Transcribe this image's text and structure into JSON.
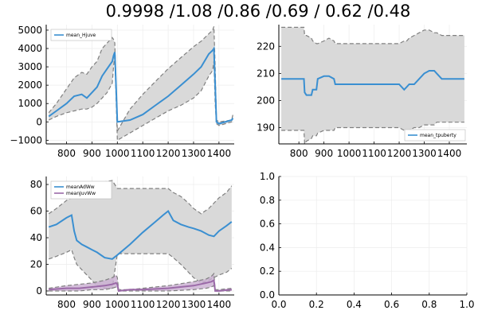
{
  "figure": {
    "title": "0.9998 /1.08 /0.86 /0.69 / 0.62 /0.48"
  },
  "chart_data": [
    {
      "type": "line",
      "panel": "top-left",
      "title": "",
      "xlabel": "",
      "ylabel": "",
      "xlim": [
        720,
        1460
      ],
      "ylim": [
        -1200,
        5300
      ],
      "xticks": [
        800,
        900,
        1000,
        1100,
        1200,
        1300,
        1400
      ],
      "xtick_labels": [
        "800",
        "900",
        "1000",
        "1100",
        "1200",
        "1300",
        "1400"
      ],
      "yticks": [
        -1000,
        0,
        1000,
        2000,
        3000,
        4000,
        5000
      ],
      "ytick_labels": [
        "−1000",
        "0",
        "1000",
        "2000",
        "3000",
        "4000",
        "5000"
      ],
      "grid": true,
      "legend": {
        "position": "top-left",
        "entries": [
          "mean_Hjuve"
        ]
      },
      "series": [
        {
          "name": "mean_Hjuve",
          "color": "#3a8fd1",
          "x": [
            730,
            760,
            800,
            830,
            860,
            880,
            900,
            920,
            940,
            960,
            980,
            985,
            990,
            1000,
            1050,
            1100,
            1150,
            1200,
            1250,
            1300,
            1330,
            1360,
            1375,
            1380,
            1385,
            1390,
            1400,
            1450,
            1455
          ],
          "y": [
            300,
            600,
            1000,
            1400,
            1500,
            1300,
            1600,
            1900,
            2500,
            2900,
            3300,
            3600,
            3800,
            0,
            100,
            400,
            900,
            1400,
            2000,
            2600,
            3000,
            3700,
            3900,
            4000,
            2000,
            0,
            -100,
            100,
            200
          ],
          "band_upper": [
            500,
            1000,
            1800,
            2400,
            2700,
            2600,
            3000,
            3300,
            4000,
            4300,
            4600,
            4500,
            4300,
            -500,
            700,
            1500,
            2200,
            2900,
            3500,
            4100,
            4400,
            4800,
            5000,
            5200,
            3000,
            100,
            0,
            100,
            400
          ],
          "band_lower": [
            100,
            300,
            500,
            600,
            700,
            700,
            800,
            1000,
            1300,
            1600,
            2100,
            3000,
            3600,
            -1000,
            -600,
            -200,
            200,
            600,
            900,
            1300,
            1700,
            2500,
            2800,
            3300,
            1000,
            -100,
            -200,
            0,
            100
          ]
        }
      ]
    },
    {
      "type": "line",
      "panel": "top-right",
      "title": "",
      "xlabel": "",
      "ylabel": "",
      "xlim": [
        720,
        1470
      ],
      "ylim": [
        184,
        228
      ],
      "xticks": [
        800,
        900,
        1000,
        1100,
        1200,
        1300,
        1400
      ],
      "xtick_labels": [
        "800",
        "900",
        "1000",
        "1100",
        "1200",
        "1300",
        "1400"
      ],
      "yticks": [
        190,
        200,
        210,
        220
      ],
      "ytick_labels": [
        "190",
        "200",
        "210",
        "220"
      ],
      "grid": true,
      "legend": {
        "position": "bottom-right",
        "entries": [
          "mean_tpuberty"
        ]
      },
      "series": [
        {
          "name": "mean_tpuberty",
          "color": "#3a8fd1",
          "x": [
            730,
            820,
            823,
            830,
            850,
            855,
            870,
            875,
            900,
            920,
            940,
            945,
            1050,
            1100,
            1150,
            1200,
            1220,
            1230,
            1240,
            1260,
            1280,
            1300,
            1320,
            1340,
            1350,
            1370,
            1400,
            1460
          ],
          "y": [
            208,
            208,
            203,
            202,
            202,
            204,
            204,
            208,
            209,
            209,
            208,
            206,
            206,
            206,
            206,
            206,
            204,
            205,
            206,
            206,
            208,
            210,
            211,
            211,
            210,
            208,
            208,
            208
          ],
          "band_upper": [
            227,
            227,
            224,
            224,
            223,
            222,
            221,
            221,
            222,
            223,
            222,
            221,
            221,
            221,
            221,
            221,
            222,
            222,
            223,
            224,
            225,
            226,
            226,
            225,
            225,
            224,
            224,
            224
          ],
          "band_lower": [
            189,
            189,
            184,
            185,
            186,
            187,
            187,
            188,
            189,
            189,
            189,
            190,
            190,
            190,
            190,
            190,
            189,
            189,
            189,
            190,
            190,
            191,
            191,
            191,
            192,
            192,
            192,
            192
          ]
        }
      ]
    },
    {
      "type": "line",
      "panel": "bottom-left",
      "title": "",
      "xlabel": "",
      "ylabel": "",
      "xlim": [
        720,
        1460
      ],
      "ylim": [
        -3,
        86
      ],
      "xticks": [
        800,
        900,
        1000,
        1100,
        1200,
        1300,
        1400
      ],
      "xtick_labels": [
        "800",
        "900",
        "1000",
        "1100",
        "1200",
        "1300",
        "1400"
      ],
      "yticks": [
        0,
        20,
        40,
        60,
        80
      ],
      "ytick_labels": [
        "0",
        "20",
        "40",
        "60",
        "80"
      ],
      "grid": true,
      "legend": {
        "position": "top-left",
        "entries": [
          "meanAdWw",
          "meanJuvWw"
        ]
      },
      "series": [
        {
          "name": "meanAdWw",
          "color": "#3a8fd1",
          "x": [
            730,
            760,
            800,
            820,
            830,
            840,
            860,
            880,
            900,
            920,
            950,
            980,
            1000,
            1050,
            1100,
            1150,
            1180,
            1200,
            1220,
            1250,
            1280,
            1300,
            1330,
            1360,
            1380,
            1400,
            1430,
            1450
          ],
          "y": [
            48,
            50,
            55,
            57,
            45,
            38,
            35,
            33,
            31,
            29,
            25,
            24,
            27,
            35,
            44,
            52,
            57,
            60,
            53,
            50,
            48,
            47,
            45,
            42,
            41,
            45,
            49,
            52
          ],
          "band_upper": [
            58,
            62,
            68,
            70,
            72,
            74,
            76,
            78,
            80,
            82,
            82,
            83,
            77,
            77,
            77,
            77,
            77,
            77,
            74,
            71,
            66,
            62,
            58,
            62,
            66,
            70,
            74,
            79
          ],
          "band_lower": [
            24,
            26,
            29,
            31,
            25,
            20,
            16,
            12,
            8,
            4,
            2,
            2,
            28,
            28,
            28,
            28,
            28,
            28,
            25,
            20,
            14,
            10,
            6,
            8,
            10,
            12,
            14,
            17
          ]
        },
        {
          "name": "meanJuvWw",
          "color": "#9b6aa8",
          "x": [
            730,
            800,
            850,
            900,
            950,
            980,
            995,
            1000,
            1005,
            1050,
            1100,
            1200,
            1300,
            1350,
            1370,
            1380,
            1385,
            1400,
            1450
          ],
          "y": [
            1,
            2,
            2,
            3,
            4,
            5,
            6,
            5,
            0,
            1,
            1,
            2,
            4,
            6,
            7,
            8,
            0,
            0,
            1
          ],
          "band_upper": [
            2,
            4,
            5,
            6,
            8,
            10,
            12,
            10,
            1,
            1,
            2,
            4,
            7,
            9,
            11,
            13,
            1,
            1,
            2
          ],
          "band_lower": [
            0,
            0,
            0,
            1,
            1,
            2,
            3,
            2,
            0,
            0,
            0,
            0,
            1,
            2,
            3,
            4,
            0,
            0,
            0
          ]
        }
      ]
    },
    {
      "type": "line",
      "panel": "bottom-right",
      "title": "",
      "xlabel": "",
      "ylabel": "",
      "xlim": [
        0,
        1
      ],
      "ylim": [
        0,
        1
      ],
      "xticks": [
        0,
        0.2,
        0.4,
        0.6,
        0.8,
        1
      ],
      "xtick_labels": [
        "0.0",
        "0.2",
        "0.4",
        "0.6",
        "0.8",
        "1.0"
      ],
      "yticks": [
        0,
        0.2,
        0.4,
        0.6,
        0.8,
        1
      ],
      "ytick_labels": [
        "0.0",
        "0.2",
        "0.4",
        "0.6",
        "0.8",
        "1.0"
      ],
      "grid": true,
      "legend": null,
      "series": []
    }
  ],
  "colors": {
    "band_fill": "#d9d9d9",
    "band_edge": "#808080",
    "grid": "#ececec",
    "axis": "#000000"
  }
}
